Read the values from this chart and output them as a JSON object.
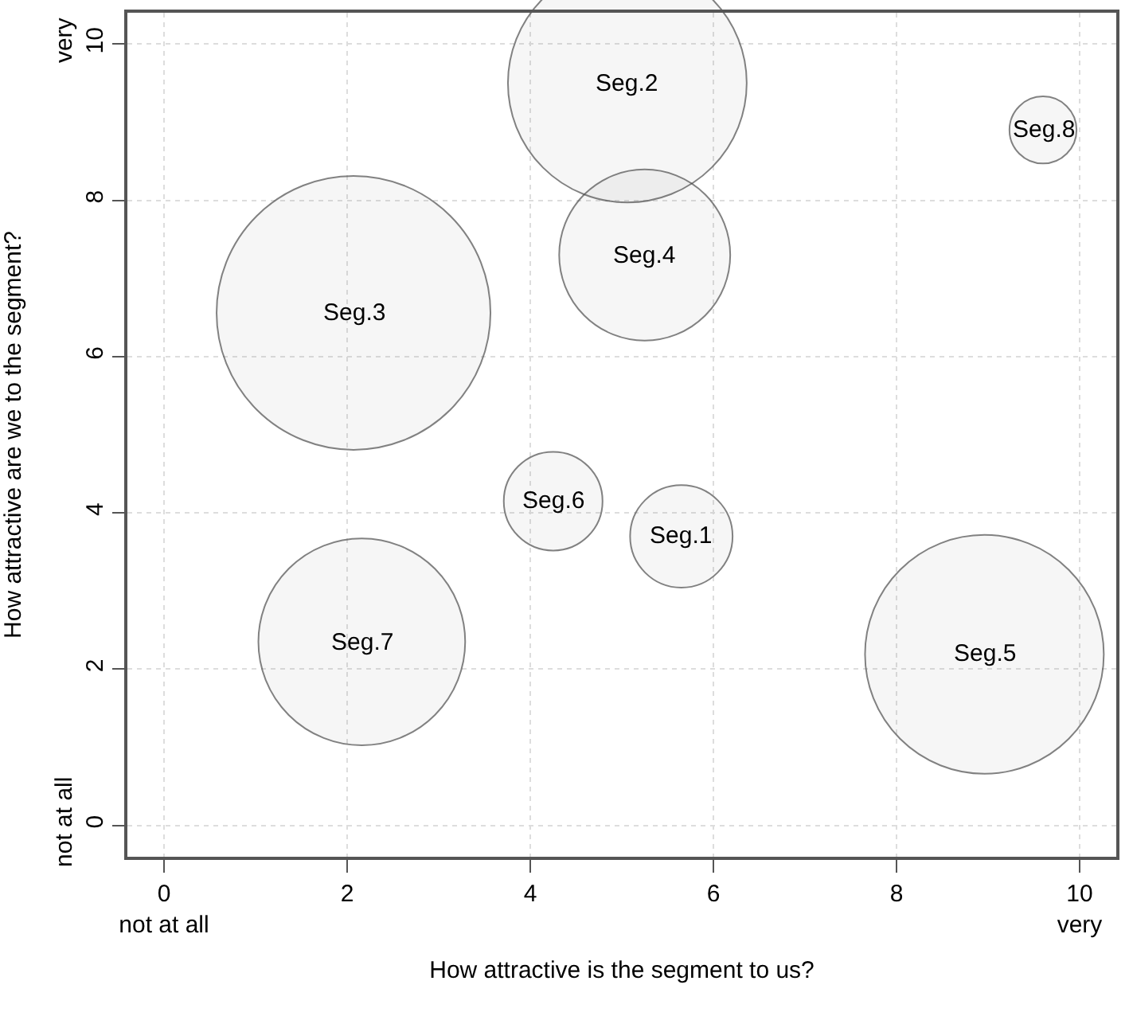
{
  "chart_data": {
    "type": "bubble",
    "xlabel": "How attractive is the segment to us?",
    "ylabel": "How attractive are we to the segment?",
    "x": [
      5.65,
      5.06,
      2.07,
      5.25,
      8.96,
      4.25,
      2.16,
      9.6
    ],
    "values": [
      3.7,
      9.5,
      6.56,
      7.3,
      2.19,
      4.15,
      2.35,
      8.9
    ],
    "sizes": [
      0.14,
      0.76,
      1,
      0.39,
      0.76,
      0.13,
      0.57,
      0.06
    ],
    "color": "#4d4d4d",
    "marker": "circle",
    "annotations": [
      {
        "text": "Seg.1",
        "x": 5.65,
        "y": 3.7
      },
      {
        "text": "Seg.2",
        "x": 5.06,
        "y": 9.5
      },
      {
        "text": "Seg.3",
        "x": 2.07,
        "y": 6.56
      },
      {
        "text": "Seg.4",
        "x": 5.25,
        "y": 7.3
      },
      {
        "text": "Seg.5",
        "x": 8.96,
        "y": 2.19
      },
      {
        "text": "Seg.6",
        "x": 4.25,
        "y": 4.15
      },
      {
        "text": "Seg.7",
        "x": 2.16,
        "y": 2.35
      },
      {
        "text": "Seg.8",
        "x": 9.6,
        "y": 8.9
      }
    ],
    "xlim": [
      -0.4,
      10.4
    ],
    "ylim": [
      -0.4,
      10.4
    ],
    "xticks": [
      {
        "value": 0,
        "label": "0\nnot at all"
      },
      2,
      4,
      6,
      8,
      {
        "value": 10,
        "label": "10\nvery"
      }
    ],
    "yticks": [
      {
        "value": 0,
        "label": "not at all\n0"
      },
      2,
      4,
      6,
      8,
      {
        "value": 10,
        "label": "very\n10"
      }
    ],
    "grid": true,
    "legend": false
  }
}
